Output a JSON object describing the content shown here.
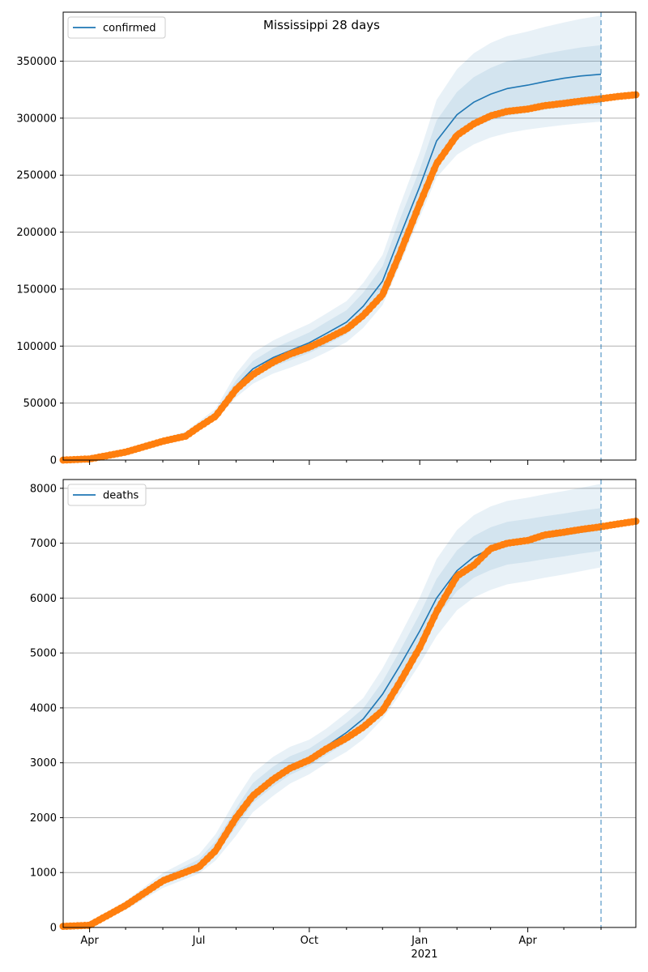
{
  "title": "Mississippi 28 days",
  "x_ticks": [
    "Apr",
    "Jul",
    "Oct",
    "Jan",
    "Apr"
  ],
  "x_year_label": "2021",
  "colors": {
    "model": "#1f77b4",
    "observed": "#ff7f0e",
    "grid": "#b0b0b0",
    "forecast_line": "#1f77b4"
  },
  "chart_data": [
    {
      "type": "line",
      "legend": "confirmed",
      "legend_position": "top-left",
      "grid": "horizontal",
      "x_range": [
        "2020-03-10",
        "2021-06-30"
      ],
      "ylim": [
        0,
        393000
      ],
      "y_ticks": [
        0,
        50000,
        100000,
        150000,
        200000,
        250000,
        300000,
        350000
      ],
      "y_tick_labels": [
        "0",
        "50000",
        "100000",
        "150000",
        "200000",
        "250000",
        "300000",
        "350000"
      ],
      "forecast_date": "2021-06-01",
      "x": [
        "2020-03-10",
        "2020-04-01",
        "2020-05-01",
        "2020-06-01",
        "2020-06-20",
        "2020-07-01",
        "2020-07-15",
        "2020-08-01",
        "2020-08-15",
        "2020-09-01",
        "2020-09-15",
        "2020-10-01",
        "2020-10-15",
        "2020-11-01",
        "2020-11-15",
        "2020-12-01",
        "2020-12-15",
        "2021-01-01",
        "2021-01-15",
        "2021-02-01",
        "2021-02-15",
        "2021-03-01",
        "2021-03-15",
        "2021-04-01",
        "2021-04-15",
        "2021-05-01",
        "2021-05-15",
        "2021-06-01"
      ],
      "series": [
        {
          "name": "confirmed",
          "values": [
            0,
            1200,
            7500,
            17000,
            22000,
            30000,
            40000,
            65000,
            80000,
            90000,
            96000,
            103000,
            111000,
            121000,
            135000,
            157000,
            195000,
            240000,
            280000,
            303000,
            314000,
            321000,
            326000,
            329000,
            332000,
            335000,
            337000,
            338500
          ],
          "bands": [
            {
              "lower": [
                0,
                1100,
                7000,
                16000,
                20500,
                28000,
                37500,
                60000,
                73000,
                82000,
                87500,
                94000,
                101000,
                110500,
                123000,
                144000,
                180000,
                225000,
                262000,
                283000,
                292000,
                298000,
                302000,
                305000,
                307500,
                309500,
                311000,
                312000
              ],
              "upper": [
                0,
                1300,
                8000,
                18000,
                23500,
                32000,
                42500,
                70000,
                87000,
                98000,
                104500,
                112000,
                121000,
                131500,
                147000,
                170000,
                210000,
                255000,
                298000,
                323000,
                336000,
                344000,
                350000,
                353000,
                356500,
                359500,
                362000,
                364000
              ]
            },
            {
              "lower": [
                0,
                1000,
                6500,
                15000,
                19500,
                26500,
                35500,
                55000,
                67000,
                76000,
                81000,
                87500,
                94500,
                103500,
                116000,
                136000,
                170000,
                213000,
                248000,
                268000,
                277000,
                283000,
                287000,
                290000,
                292000,
                294000,
                295500,
                297000
              ],
              "upper": [
                0,
                1400,
                8600,
                19500,
                25000,
                34000,
                45000,
                76000,
                94000,
                105000,
                112000,
                119500,
                128500,
                139500,
                155500,
                180000,
                222000,
                270000,
                316000,
                343000,
                357000,
                366000,
                372000,
                376000,
                380000,
                384000,
                387000,
                390000
              ]
            }
          ]
        },
        {
          "name": "observed",
          "x": [
            "2020-03-10",
            "2020-04-01",
            "2020-05-01",
            "2020-06-01",
            "2020-06-20",
            "2020-07-01",
            "2020-07-15",
            "2020-08-01",
            "2020-08-15",
            "2020-09-01",
            "2020-09-15",
            "2020-10-01",
            "2020-10-15",
            "2020-11-01",
            "2020-11-15",
            "2020-12-01",
            "2020-12-15",
            "2021-01-01",
            "2021-01-15",
            "2021-02-01",
            "2021-02-15",
            "2021-03-01",
            "2021-03-15",
            "2021-04-01",
            "2021-04-15",
            "2021-05-01",
            "2021-05-15",
            "2021-06-01",
            "2021-06-15",
            "2021-06-30"
          ],
          "values": [
            0,
            1000,
            7000,
            16500,
            21000,
            29000,
            38500,
            62000,
            75000,
            86000,
            93000,
            99000,
            106000,
            115000,
            127000,
            145000,
            180000,
            225000,
            260000,
            285000,
            295000,
            302000,
            306000,
            308000,
            311000,
            313000,
            315000,
            317000,
            319000,
            320500
          ]
        }
      ]
    },
    {
      "type": "line",
      "legend": "deaths",
      "legend_position": "top-left",
      "grid": "horizontal",
      "x_range": [
        "2020-03-10",
        "2021-06-30"
      ],
      "ylim": [
        0,
        8160
      ],
      "y_ticks": [
        0,
        1000,
        2000,
        3000,
        4000,
        5000,
        6000,
        7000,
        8000
      ],
      "y_tick_labels": [
        "0",
        "1000",
        "2000",
        "3000",
        "4000",
        "5000",
        "6000",
        "7000",
        "8000"
      ],
      "forecast_date": "2021-06-01",
      "x": [
        "2020-03-10",
        "2020-04-01",
        "2020-05-01",
        "2020-06-01",
        "2020-07-01",
        "2020-07-15",
        "2020-08-01",
        "2020-08-15",
        "2020-09-01",
        "2020-09-15",
        "2020-10-01",
        "2020-10-15",
        "2020-11-01",
        "2020-11-15",
        "2020-12-01",
        "2020-12-15",
        "2021-01-01",
        "2021-01-15",
        "2021-02-01",
        "2021-02-15",
        "2021-03-01",
        "2021-03-15",
        "2021-04-01",
        "2021-04-15",
        "2021-05-01",
        "2021-05-15",
        "2021-06-01"
      ],
      "series": [
        {
          "name": "deaths",
          "values": [
            10,
            40,
            400,
            850,
            1150,
            1450,
            2000,
            2450,
            2750,
            2950,
            3100,
            3300,
            3550,
            3800,
            4250,
            4750,
            5400,
            6000,
            6500,
            6750,
            6900,
            7000,
            7050,
            7100,
            7150,
            7200,
            7250
          ],
          "bands": [
            {
              "lower": [
                0,
                25,
                360,
                780,
                1060,
                1330,
                1830,
                2270,
                2570,
                2780,
                2940,
                3140,
                3370,
                3610,
                4020,
                4480,
                5090,
                5650,
                6130,
                6370,
                6510,
                6610,
                6660,
                6710,
                6760,
                6810,
                6860
              ],
              "upper": [
                20,
                55,
                440,
                920,
                1240,
                1570,
                2170,
                2630,
                2930,
                3120,
                3260,
                3460,
                3730,
                3990,
                4480,
                5020,
                5710,
                6350,
                6870,
                7130,
                7290,
                7390,
                7440,
                7490,
                7540,
                7590,
                7640
              ]
            },
            {
              "lower": [
                0,
                15,
                320,
                720,
                980,
                1220,
                1670,
                2100,
                2400,
                2620,
                2790,
                2990,
                3200,
                3430,
                3800,
                4230,
                4800,
                5310,
                5780,
                6010,
                6150,
                6250,
                6310,
                6370,
                6430,
                6490,
                6560
              ],
              "upper": [
                40,
                70,
                480,
                990,
                1330,
                1700,
                2340,
                2810,
                3110,
                3290,
                3420,
                3620,
                3910,
                4180,
                4720,
                5290,
                6010,
                6710,
                7240,
                7510,
                7670,
                7770,
                7830,
                7890,
                7950,
                8010,
                8080
              ]
            }
          ]
        },
        {
          "name": "observed",
          "x": [
            "2020-03-10",
            "2020-04-01",
            "2020-05-01",
            "2020-06-01",
            "2020-07-01",
            "2020-07-15",
            "2020-08-01",
            "2020-08-15",
            "2020-09-01",
            "2020-09-15",
            "2020-10-01",
            "2020-10-15",
            "2020-11-01",
            "2020-11-15",
            "2020-12-01",
            "2020-12-15",
            "2021-01-01",
            "2021-01-15",
            "2021-02-01",
            "2021-02-15",
            "2021-03-01",
            "2021-03-15",
            "2021-04-01",
            "2021-04-15",
            "2021-05-01",
            "2021-05-15",
            "2021-06-01",
            "2021-06-15",
            "2021-06-30"
          ],
          "values": [
            20,
            40,
            400,
            850,
            1100,
            1400,
            2000,
            2400,
            2700,
            2900,
            3050,
            3250,
            3450,
            3650,
            3950,
            4450,
            5100,
            5750,
            6400,
            6600,
            6900,
            7000,
            7050,
            7150,
            7200,
            7250,
            7300,
            7350,
            7400
          ]
        }
      ]
    }
  ]
}
